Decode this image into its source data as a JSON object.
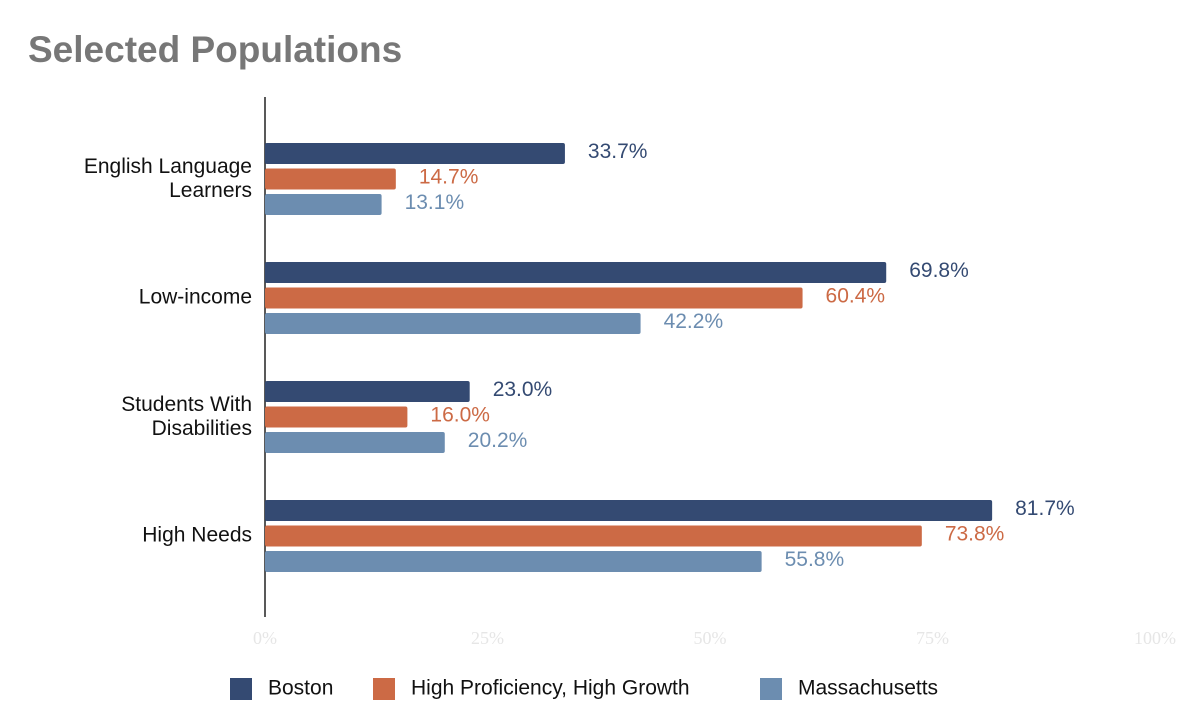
{
  "chart_data": {
    "type": "hbar",
    "title": "Selected Populations",
    "categories": [
      "English Language Learners",
      "Low-income",
      "Students With Disabilities",
      "High Needs"
    ],
    "series": [
      {
        "name": "Boston",
        "color": "#344a72",
        "values": [
          33.7,
          69.8,
          23.0,
          81.7
        ],
        "value_labels": [
          "33.7%",
          "69.8%",
          "23.0%",
          "81.7%"
        ]
      },
      {
        "name": "High Proficiency, High Growth",
        "color": "#cc6a45",
        "values": [
          14.7,
          60.4,
          16.0,
          73.8
        ],
        "value_labels": [
          "14.7%",
          "60.4%",
          "16.0%",
          "73.8%"
        ]
      },
      {
        "name": "Massachusetts",
        "color": "#6c8db0",
        "values": [
          13.1,
          42.2,
          20.2,
          55.8
        ],
        "value_labels": [
          "13.1%",
          "42.2%",
          "20.2%",
          "55.8%"
        ]
      }
    ],
    "xlim": [
      0,
      100
    ],
    "xticks": [
      {
        "value": 0,
        "label": "0%"
      },
      {
        "value": 25,
        "label": "25%"
      },
      {
        "value": 50,
        "label": "50%"
      },
      {
        "value": 75,
        "label": "75%"
      },
      {
        "value": 100,
        "label": "100%"
      }
    ],
    "legend": "bottom"
  }
}
